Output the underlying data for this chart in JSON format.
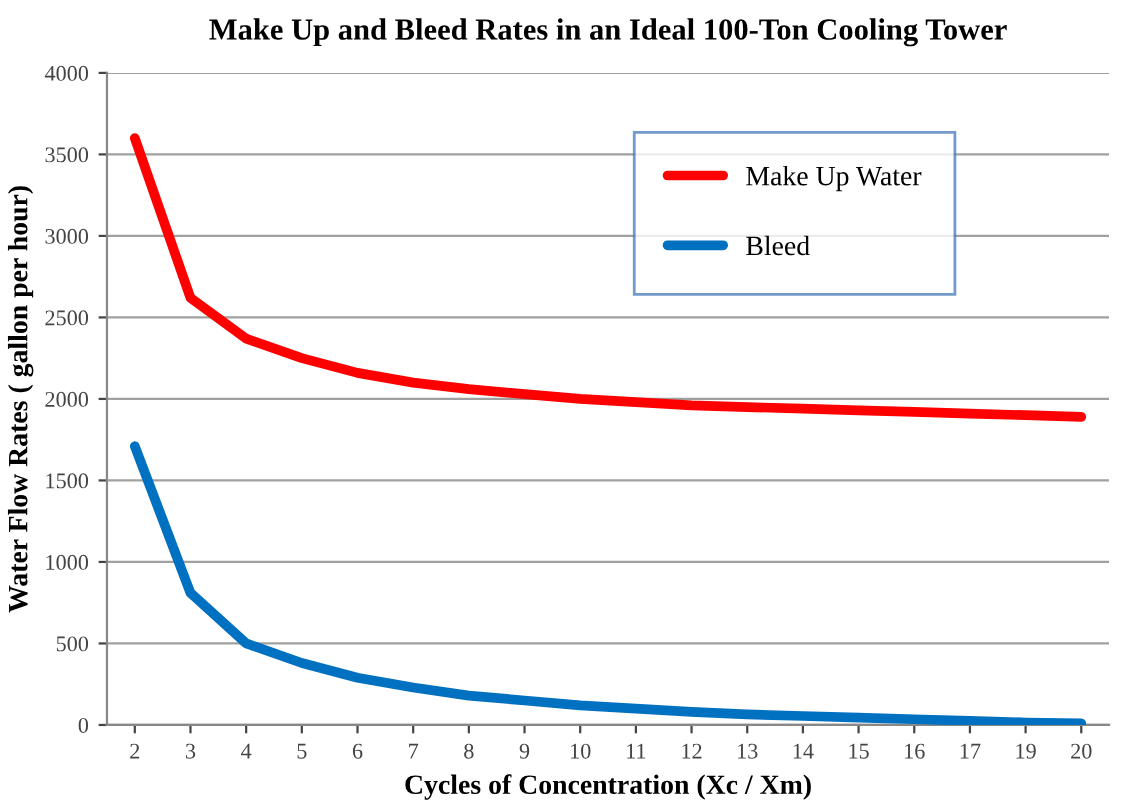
{
  "chart_data": {
    "type": "line",
    "title": "Make Up and Bleed Rates in an Ideal 100-Ton Cooling Tower",
    "xlabel": "Cycles of Concentration (Xc / Xm)",
    "ylabel": "Water Flow Rates ( gallon per hour)",
    "categories": [
      "2",
      "3",
      "4",
      "5",
      "6",
      "7",
      "8",
      "9",
      "10",
      "11",
      "12",
      "13",
      "14",
      "15",
      "16",
      "17",
      "19",
      "20"
    ],
    "series": [
      {
        "name": "Make Up Water",
        "color": "#ff0000",
        "values": [
          3600,
          2620,
          2370,
          2250,
          2160,
          2100,
          2060,
          2030,
          2000,
          1980,
          1960,
          1950,
          1940,
          1930,
          1920,
          1910,
          1900,
          1890
        ]
      },
      {
        "name": "Bleed",
        "color": "#0070c0",
        "values": [
          1710,
          810,
          500,
          380,
          290,
          230,
          180,
          150,
          120,
          100,
          80,
          65,
          55,
          45,
          35,
          25,
          15,
          10
        ]
      }
    ],
    "ylim": [
      0,
      4000
    ],
    "yticks": [
      0,
      500,
      1000,
      1500,
      2000,
      2500,
      3000,
      3500,
      4000
    ],
    "grid": "y",
    "legend": "top right",
    "marker": "none",
    "line_style": "solid"
  }
}
